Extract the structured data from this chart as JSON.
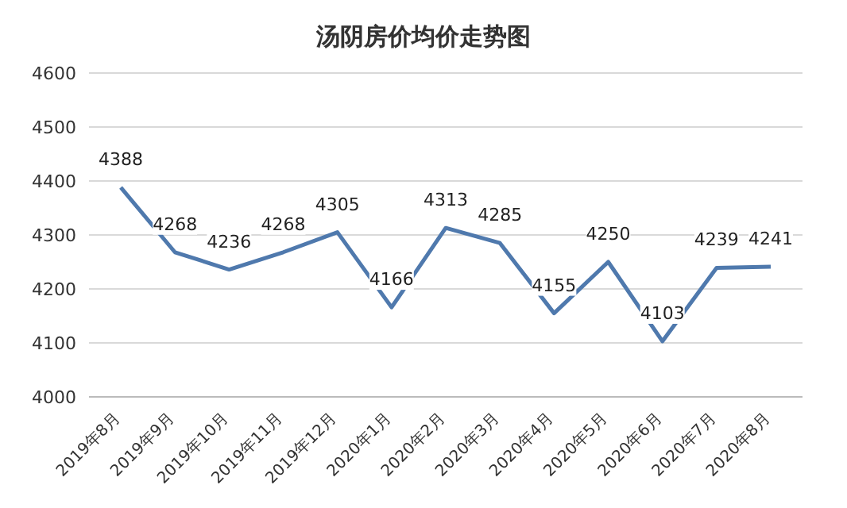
{
  "chart_data": {
    "type": "line",
    "title": "汤阴房价均价走势图",
    "categories": [
      "2019年8月",
      "2019年9月",
      "2019年10月",
      "2019年11月",
      "2019年12月",
      "2020年1月",
      "2020年2月",
      "2020年3月",
      "2020年4月",
      "2020年5月",
      "2020年6月",
      "2020年7月",
      "2020年8月"
    ],
    "series": [
      {
        "color": "#4f79ad",
        "values": [
          4388,
          4268,
          4236,
          4268,
          4305,
          4166,
          4313,
          4285,
          4155,
          4250,
          4103,
          4239,
          4241
        ]
      }
    ],
    "ylim": [
      4000,
      4600
    ],
    "yticks": [
      4000,
      4100,
      4200,
      4300,
      4400,
      4500,
      4600
    ],
    "grid": "y",
    "data_labels": true,
    "marker": "none",
    "line_style": "solid"
  }
}
